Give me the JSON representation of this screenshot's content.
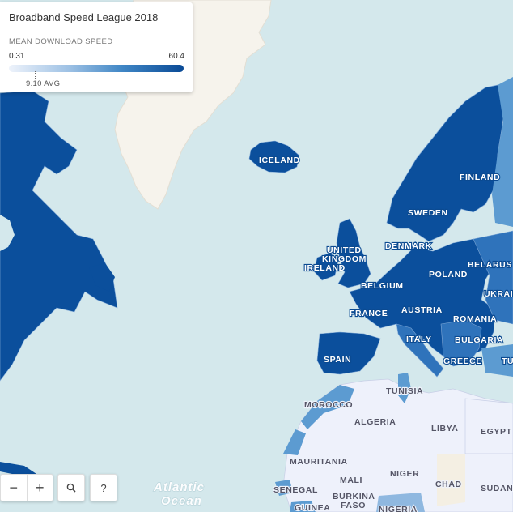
{
  "legend": {
    "title": "Broadband Speed League 2018",
    "subtitle": "MEAN DOWNLOAD SPEED",
    "min": "0.31",
    "max": "60.4",
    "avg": "9.10 AVG"
  },
  "controls": {
    "zoom_out": "−",
    "zoom_in": "+",
    "help": "?"
  },
  "labels": {
    "iceland": "ICELAND",
    "finland": "FINLAND",
    "sweden": "SWEDEN",
    "denmark": "DENMARK",
    "united": "UNITED",
    "kingdom": "KINGDOM",
    "ireland": "IRELAND",
    "belgium": "BELGIUM",
    "poland": "POLAND",
    "belarus": "BELARUS",
    "ukraine": "UKRAI",
    "france": "FRANCE",
    "austria": "AUSTRIA",
    "romania": "ROMANIA",
    "italy": "ITALY",
    "bulgaria": "BULGARIA",
    "spain": "SPAIN",
    "greece": "GREECE",
    "turkey": "TU",
    "tunisia": "TUNISIA",
    "morocco": "MOROCCO",
    "algeria": "ALGERIA",
    "libya": "LIBYA",
    "egypt": "EGYPT",
    "mauritania": "MAURITANIA",
    "mali": "MALI",
    "niger": "NIGER",
    "chad": "CHAD",
    "sudan": "SUDAN",
    "senegal": "SENEGAL",
    "burkina1": "BURKINA",
    "burkina2": "FASO",
    "guinea": "GUINEA",
    "nigeria": "NIGERIA",
    "atlantic1": "Atlantic",
    "atlantic2": "Ocean"
  },
  "colors": {
    "ocean": "#d4e8ec",
    "greenland": "#f6f3ec",
    "high": "#0b4f9c",
    "mid": "#2f73bb",
    "light": "#5c9bd1",
    "africa": "#eef1fb"
  }
}
